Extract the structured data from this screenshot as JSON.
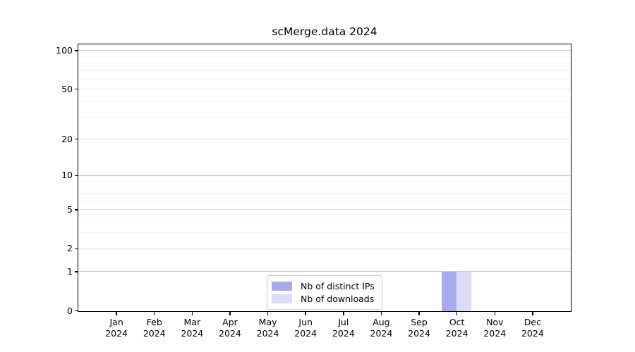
{
  "chart_data": {
    "type": "bar",
    "title": "scMerge.data 2024",
    "categories": [
      "Jan",
      "Feb",
      "Mar",
      "Apr",
      "May",
      "Jun",
      "Jul",
      "Aug",
      "Sep",
      "Oct",
      "Nov",
      "Dec"
    ],
    "x_year_label": "2024",
    "series": [
      {
        "name": "Nb of distinct IPs",
        "color": "#aaaaf2",
        "values": [
          0,
          0,
          0,
          0,
          0,
          0,
          0,
          0,
          0,
          1,
          0,
          0
        ]
      },
      {
        "name": "Nb of downloads",
        "color": "#dcdcf9",
        "values": [
          0,
          0,
          0,
          0,
          0,
          0,
          0,
          0,
          0,
          1,
          0,
          0
        ]
      }
    ],
    "yaxis": {
      "scale": "log1p",
      "ticks": [
        0,
        1,
        2,
        5,
        10,
        20,
        50,
        100
      ],
      "minor_gridlines": [
        3,
        4,
        6,
        7,
        8,
        9,
        30,
        40,
        60,
        70,
        80,
        90
      ],
      "power_of_ten_gridlines": [
        1,
        10,
        100
      ],
      "max": 111
    },
    "grid": "horizontal",
    "legend_position": "bottom-center-inside"
  }
}
